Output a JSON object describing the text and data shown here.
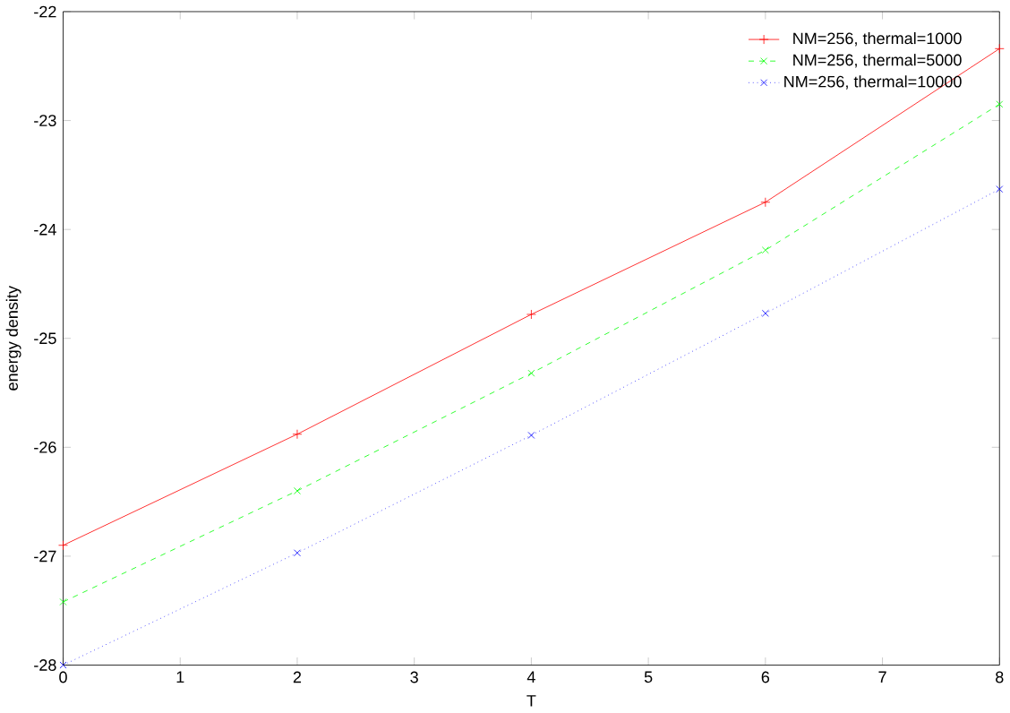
{
  "chart_data": {
    "type": "line",
    "xlabel": "T",
    "ylabel": "energy density",
    "x": [
      0,
      2,
      4,
      6,
      8
    ],
    "series": [
      {
        "name": "NM=256, thermal=1000",
        "color": "#ff0000",
        "marker": "plus",
        "line_style": "solid",
        "values": [
          -26.9,
          -25.88,
          -24.78,
          -23.75,
          -22.34
        ]
      },
      {
        "name": "NM=256, thermal=5000",
        "color": "#00ff00",
        "marker": "cross",
        "line_style": "dashed",
        "values": [
          -27.42,
          -26.4,
          -25.32,
          -24.19,
          -22.85
        ]
      },
      {
        "name": "NM=256, thermal=10000",
        "color": "#0000ff",
        "marker": "cross",
        "line_style": "dotted",
        "values": [
          -28.0,
          -26.97,
          -25.89,
          -24.77,
          -23.63
        ]
      }
    ],
    "xlim": [
      0,
      8
    ],
    "ylim": [
      -28,
      -22
    ],
    "xticks": [
      0,
      1,
      2,
      3,
      4,
      5,
      6,
      7,
      8
    ],
    "yticks": [
      -28,
      -27,
      -26,
      -25,
      -24,
      -23,
      -22
    ],
    "grid": false,
    "legend": "top right"
  }
}
